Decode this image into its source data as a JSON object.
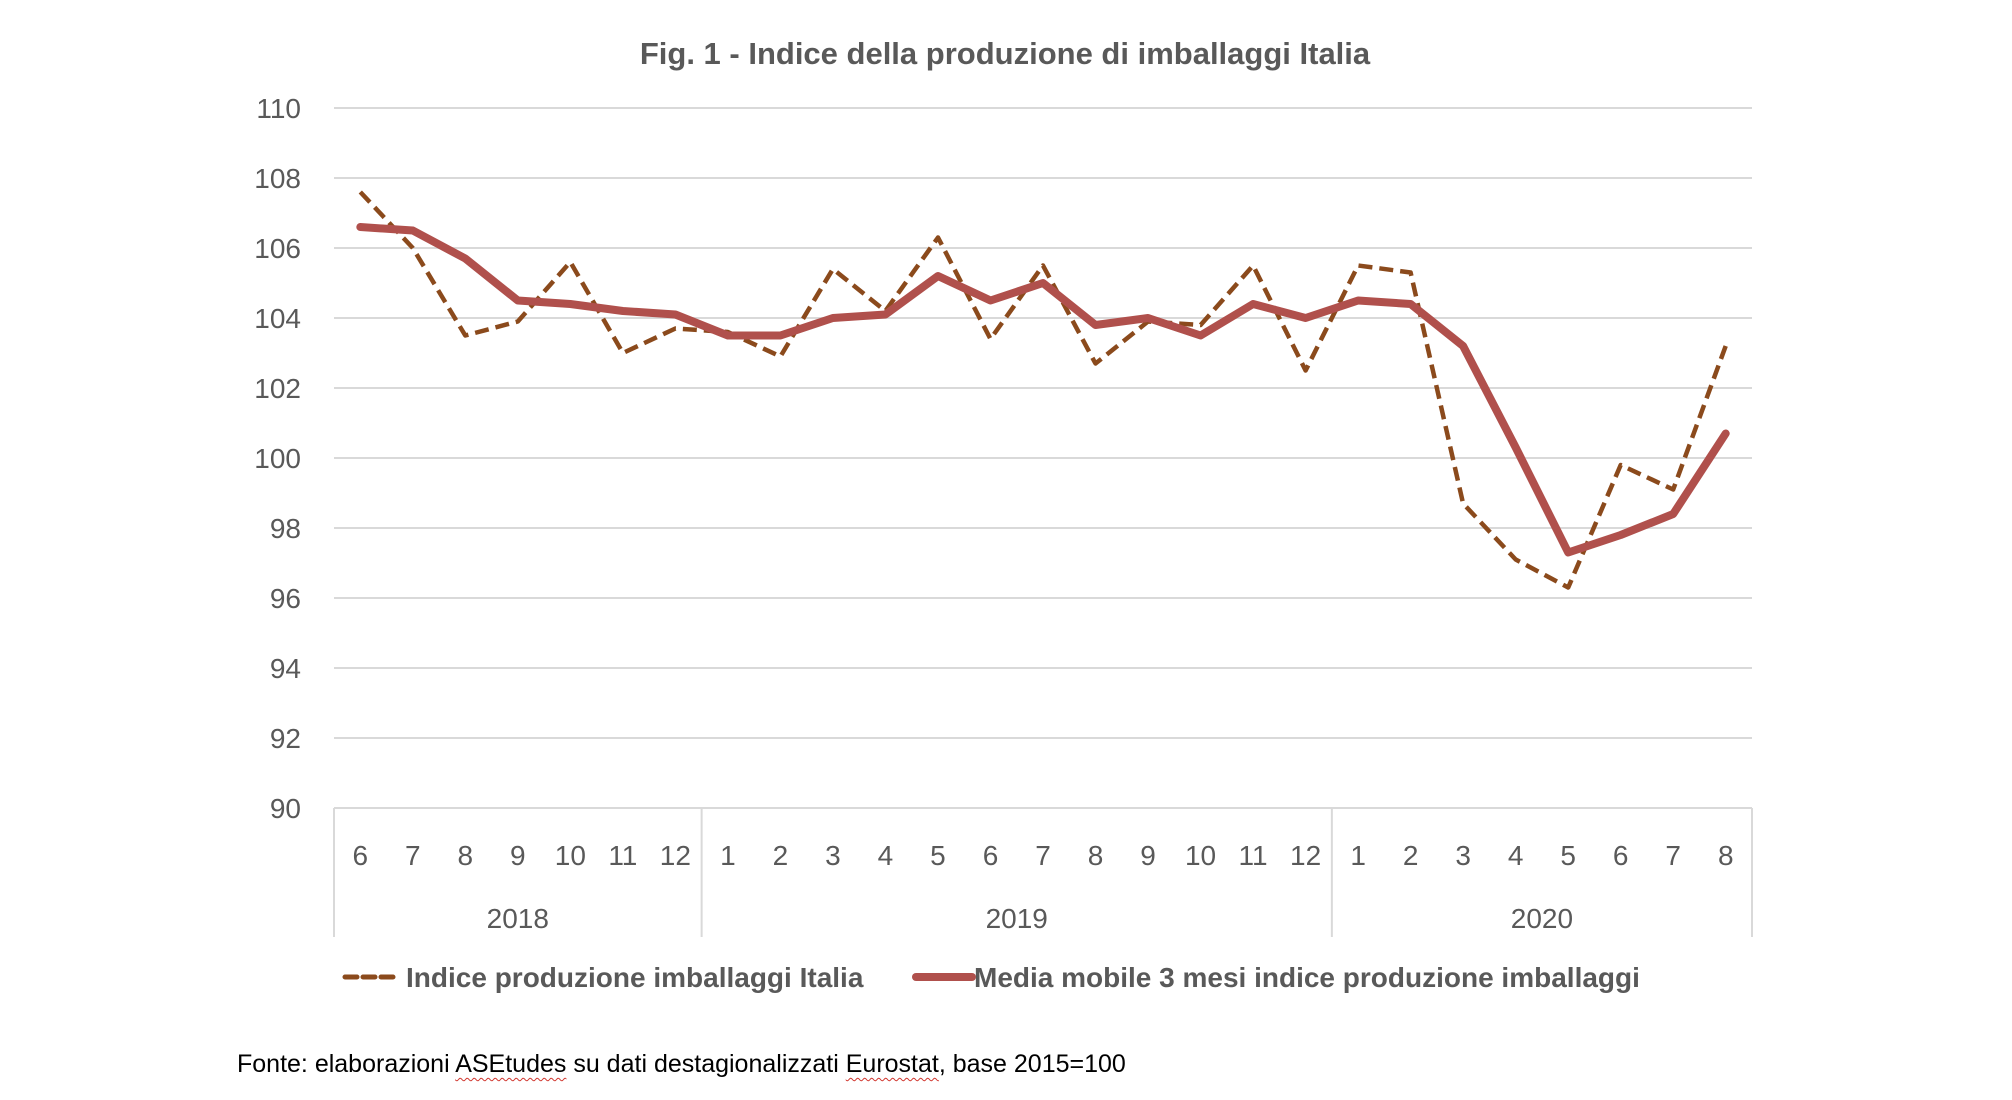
{
  "chart_data": {
    "type": "line",
    "title": "Fig. 1 - Indice della produzione di imballaggi Italia",
    "xlabel": "",
    "ylabel": "",
    "ylim": [
      90,
      110
    ],
    "yticks": [
      90,
      92,
      94,
      96,
      98,
      100,
      102,
      104,
      106,
      108,
      110
    ],
    "grid": true,
    "legend_position": "bottom",
    "categories": [
      "6",
      "7",
      "8",
      "9",
      "10",
      "11",
      "12",
      "1",
      "2",
      "3",
      "4",
      "5",
      "6",
      "7",
      "8",
      "9",
      "10",
      "11",
      "12",
      "1",
      "2",
      "3",
      "4",
      "5",
      "6",
      "7",
      "8"
    ],
    "year_groups": [
      {
        "label": "2018",
        "count": 7
      },
      {
        "label": "2019",
        "count": 12
      },
      {
        "label": "2020",
        "count": 8
      }
    ],
    "series": [
      {
        "name": "Indice produzione imballaggi Italia",
        "style": "dashed",
        "color": "#8b4a1c",
        "values": [
          107.6,
          106.0,
          103.5,
          103.9,
          105.6,
          103.0,
          103.7,
          103.6,
          102.9,
          105.4,
          104.2,
          106.3,
          103.4,
          105.5,
          102.7,
          103.9,
          103.8,
          105.5,
          102.5,
          105.5,
          105.3,
          98.7,
          97.1,
          96.3,
          99.8,
          99.1,
          103.2
        ]
      },
      {
        "name": "Media mobile 3 mesi indice produzione imballaggi",
        "style": "solid",
        "color": "#b0504c",
        "values": [
          106.6,
          106.5,
          105.7,
          104.5,
          104.4,
          104.2,
          104.1,
          103.5,
          103.5,
          104.0,
          104.1,
          105.2,
          104.5,
          105.0,
          103.8,
          104.0,
          103.5,
          104.4,
          104.0,
          104.5,
          104.4,
          103.2,
          100.3,
          97.3,
          97.8,
          98.4,
          100.7
        ]
      }
    ]
  },
  "footnote": {
    "prefix": "Fonte: elaborazioni ",
    "word1": "ASEtudes",
    "middle": " su dati destagionalizzati ",
    "word2": "Eurostat",
    "suffix": ", base 2015=100"
  }
}
